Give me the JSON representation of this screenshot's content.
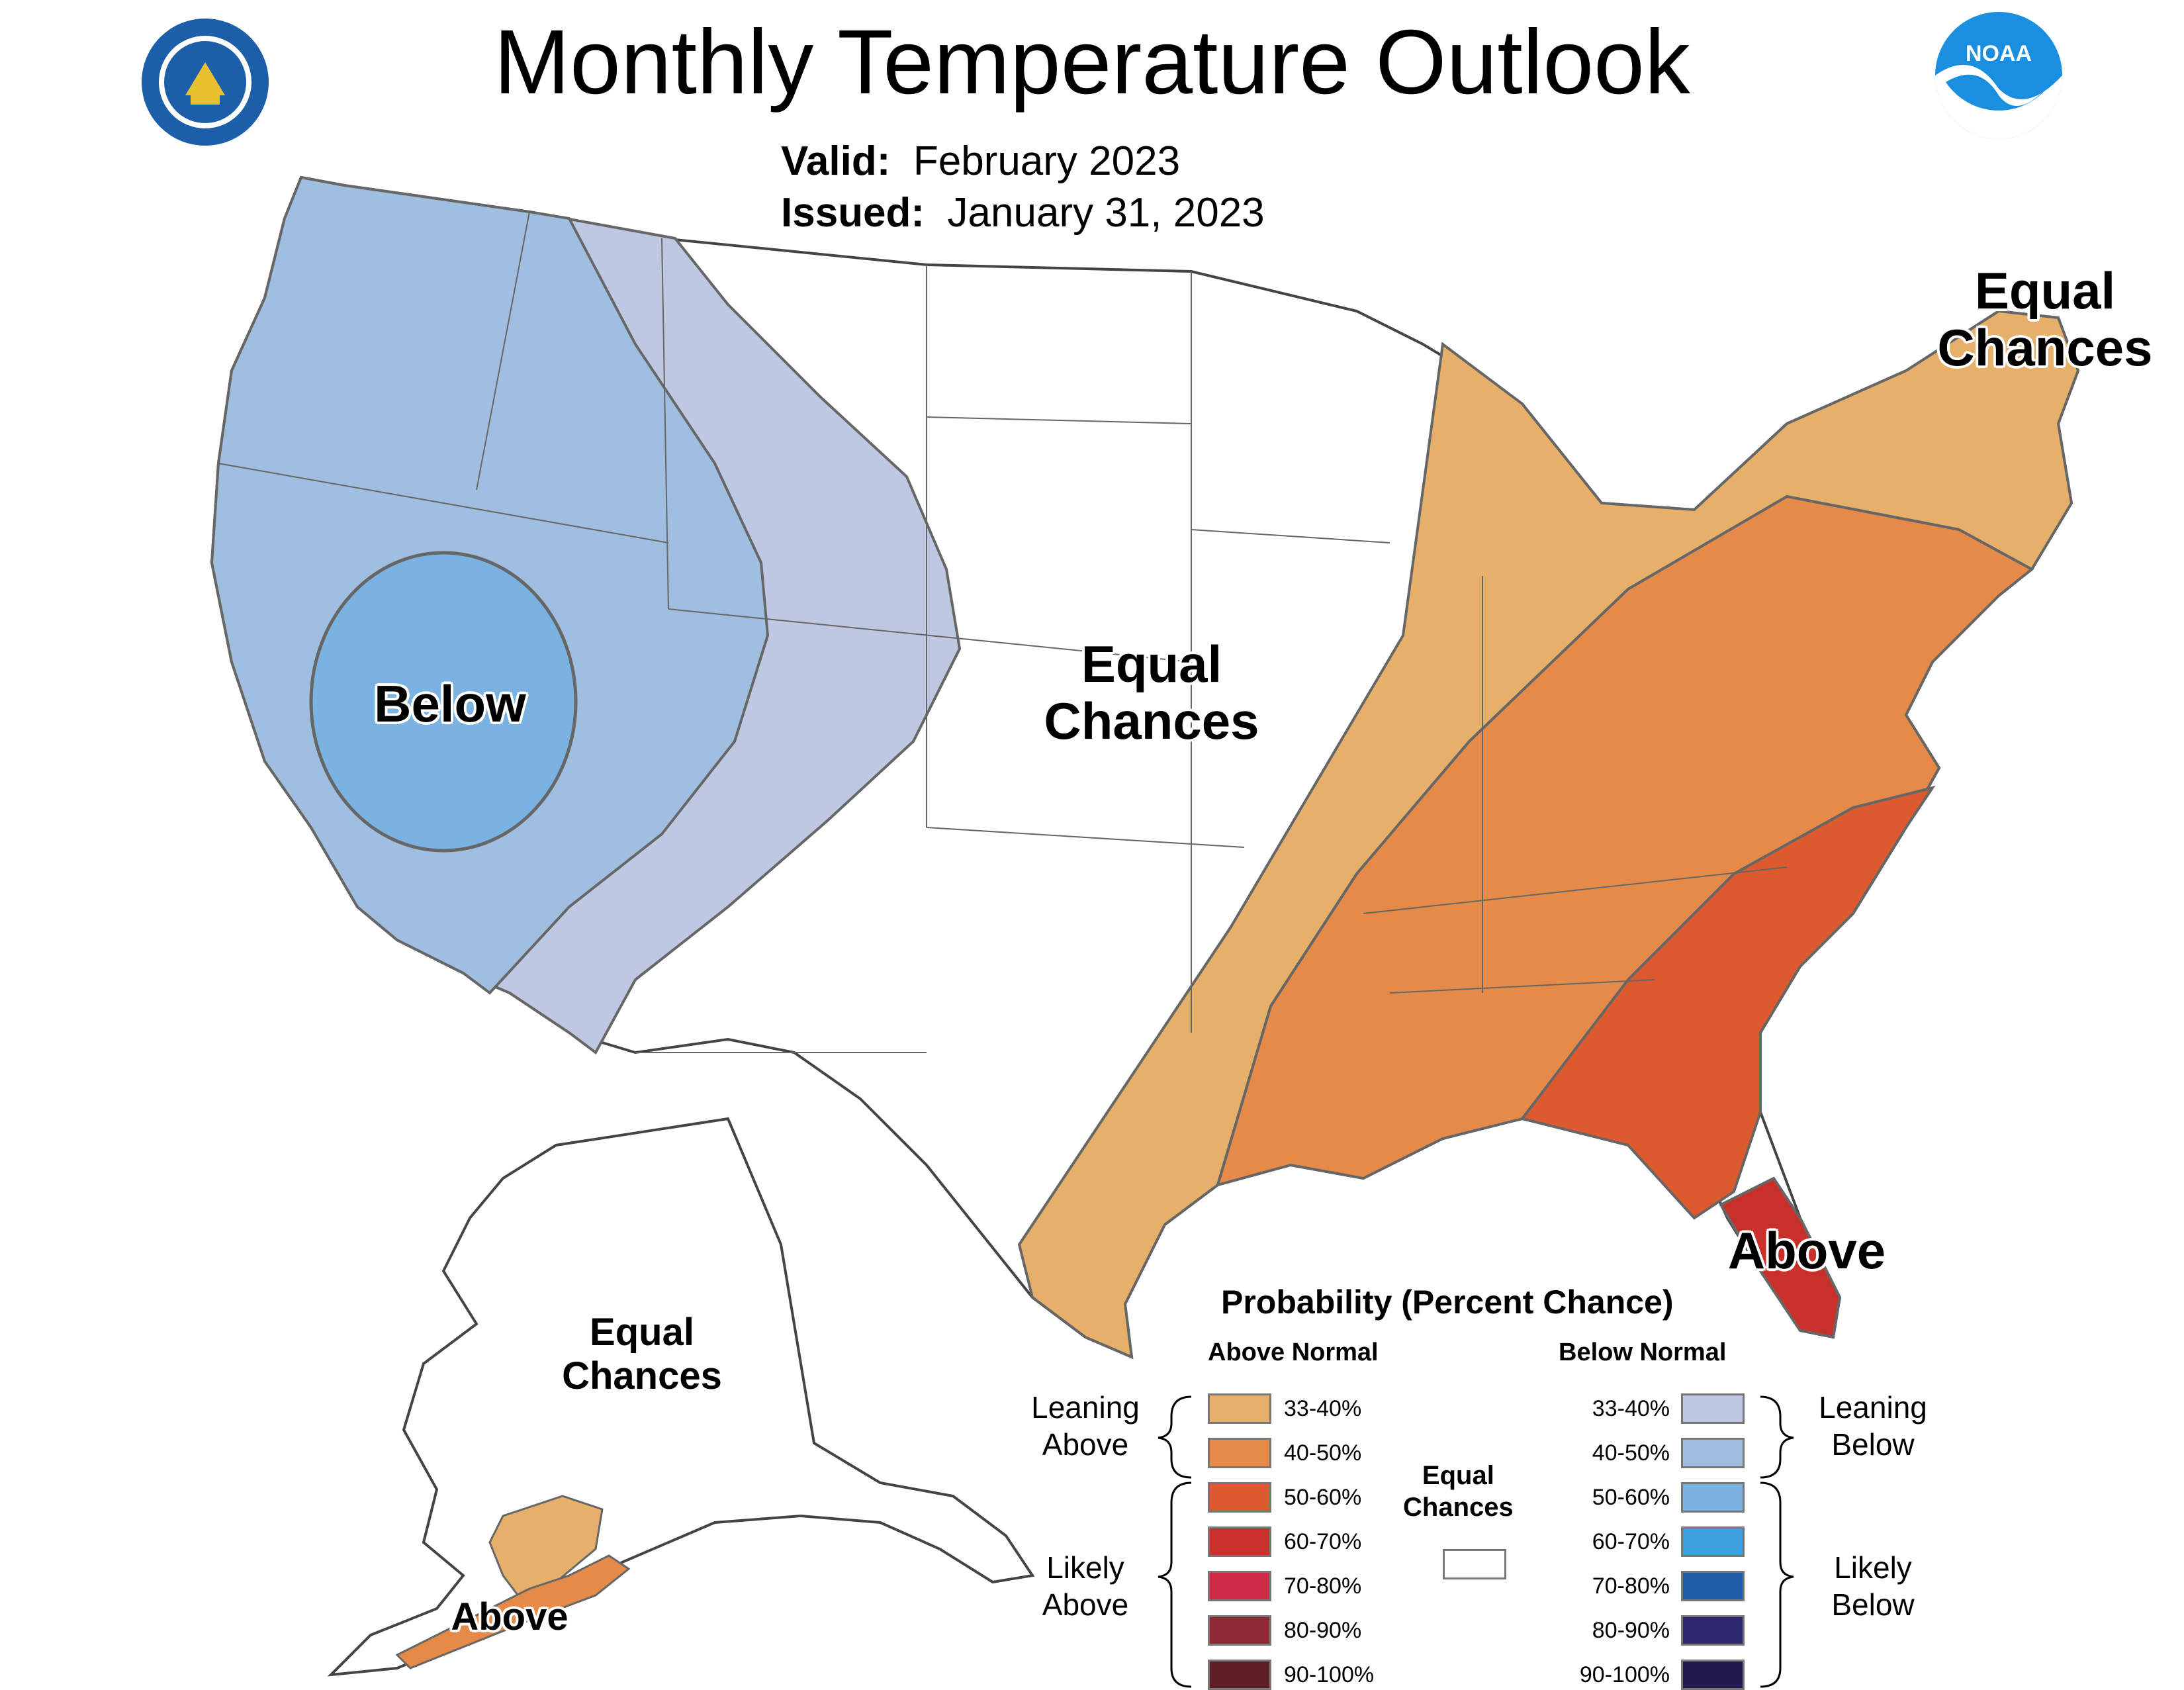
{
  "title": "Monthly Temperature Outlook",
  "valid_label": "Valid:",
  "valid_value": "February 2023",
  "issued_label": "Issued:",
  "issued_value": "January 31, 2023",
  "logos": {
    "left": "department-of-commerce-seal",
    "right": "noaa-logo",
    "noaa_text": "NOAA"
  },
  "map_labels": {
    "below_west": "Below",
    "equal_central_1": "Equal",
    "equal_central_2": "Chances",
    "equal_ne_1": "Equal",
    "equal_ne_2": "Chances",
    "above_florida": "Above",
    "equal_alaska_1": "Equal",
    "equal_alaska_2": "Chances",
    "above_alaska": "Above"
  },
  "legend": {
    "title": "Probability (Percent Chance)",
    "above_title": "Above Normal",
    "below_title": "Below Normal",
    "equal_1": "Equal",
    "equal_2": "Chances",
    "leaning_above_1": "Leaning",
    "leaning_above_2": "Above",
    "likely_above_1": "Likely",
    "likely_above_2": "Above",
    "leaning_below_1": "Leaning",
    "leaning_below_2": "Below",
    "likely_below_1": "Likely",
    "likely_below_2": "Below",
    "above": [
      {
        "label": "33-40%",
        "color": "#e6b06a"
      },
      {
        "label": "40-50%",
        "color": "#e58a48"
      },
      {
        "label": "50-60%",
        "color": "#dc5a2e"
      },
      {
        "label": "60-70%",
        "color": "#c9302a"
      },
      {
        "label": "70-80%",
        "color": "#cf2a47"
      },
      {
        "label": "80-90%",
        "color": "#8d2a35"
      },
      {
        "label": "90-100%",
        "color": "#5e1f24"
      }
    ],
    "below": [
      {
        "label": "33-40%",
        "color": "#bfc8e2"
      },
      {
        "label": "40-50%",
        "color": "#a0bee0"
      },
      {
        "label": "50-60%",
        "color": "#7ab3e1"
      },
      {
        "label": "60-70%",
        "color": "#3d9fdc"
      },
      {
        "label": "70-80%",
        "color": "#1f5ea5"
      },
      {
        "label": "80-90%",
        "color": "#2e2873"
      },
      {
        "label": "90-100%",
        "color": "#1f1b50"
      }
    ],
    "equal_color": "#ffffff"
  }
}
